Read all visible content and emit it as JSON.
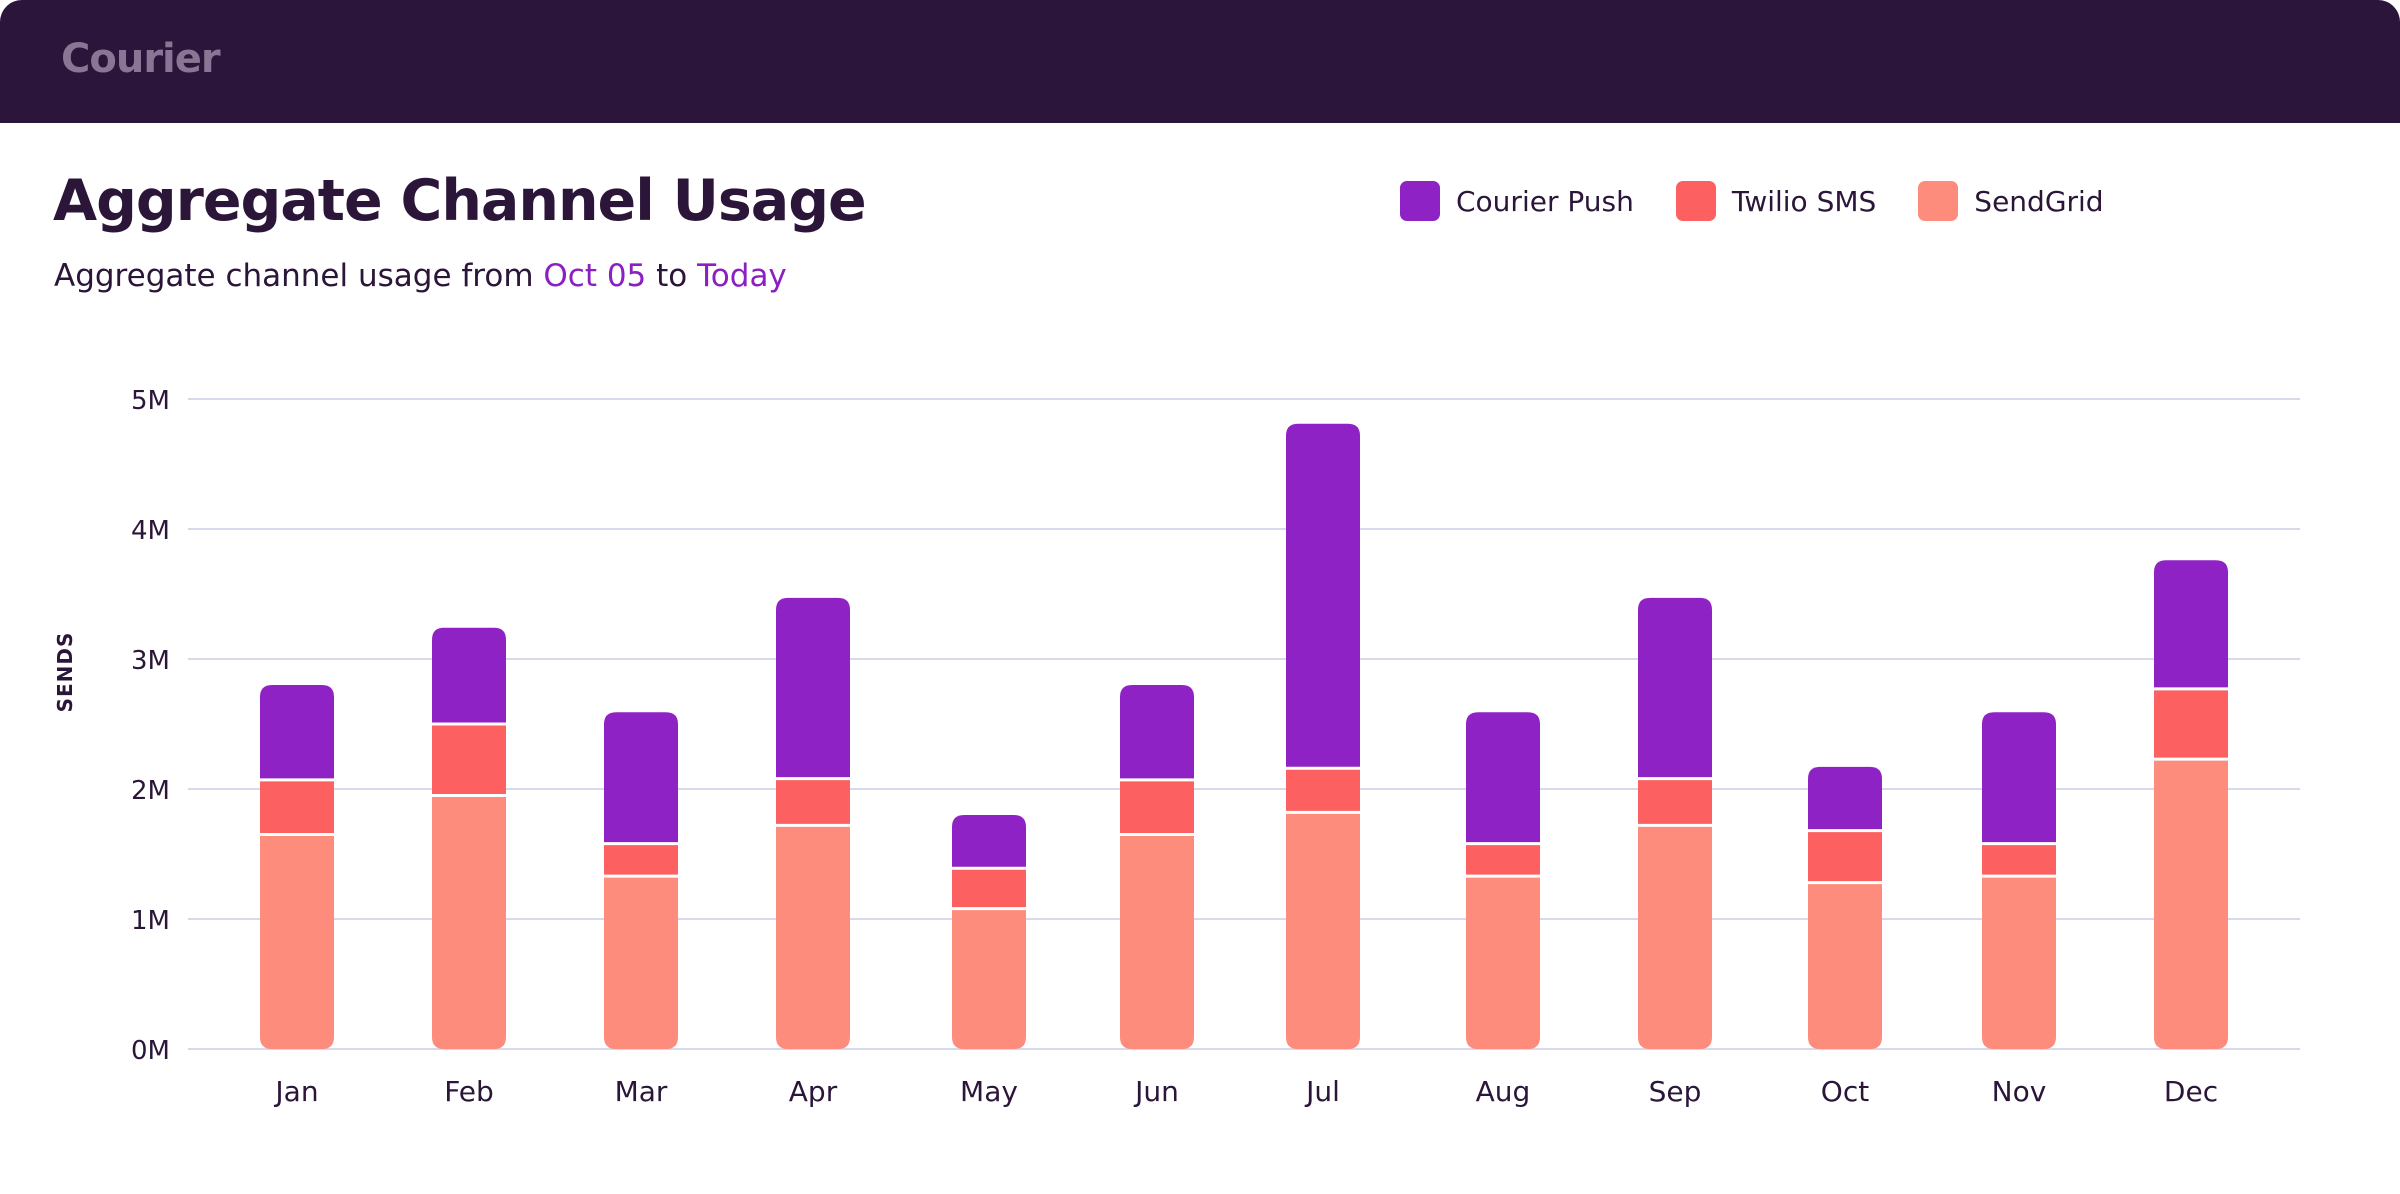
{
  "header": {
    "logo_text": "Courier"
  },
  "title": "Aggregate Channel Usage",
  "subtitle": {
    "prefix": "Aggregate channel usage from ",
    "start": "Oct 05",
    "middle": " to ",
    "end": "Today"
  },
  "colors": {
    "header_bg": "#2c153a",
    "accent": "#8b1fc2",
    "courier_push": "#8f22c4",
    "twilio_sms": "#fd6060",
    "sendgrid": "#fd8c7c",
    "gridline": "#c9cde6"
  },
  "chart_data": {
    "type": "bar",
    "stacked": true,
    "ylabel": "SENDS",
    "xlabel": "",
    "ylim": [
      0,
      5000000
    ],
    "ytick_labels": [
      "0M",
      "1M",
      "2M",
      "3M",
      "4M",
      "5M"
    ],
    "categories": [
      "Jan",
      "Feb",
      "Mar",
      "Apr",
      "May",
      "Jun",
      "Jul",
      "Aug",
      "Sep",
      "Oct",
      "Nov",
      "Dec"
    ],
    "legend_position": "top-right",
    "series": [
      {
        "name": "SendGrid",
        "color": "#fd8c7c",
        "values": [
          1650000,
          1950000,
          1330000,
          1720000,
          1080000,
          1650000,
          1820000,
          1330000,
          1720000,
          1280000,
          1330000,
          2230000
        ]
      },
      {
        "name": "Twilio SMS",
        "color": "#fd6060",
        "values": [
          420000,
          550000,
          250000,
          360000,
          310000,
          420000,
          340000,
          250000,
          360000,
          400000,
          250000,
          540000
        ]
      },
      {
        "name": "Courier Push",
        "color": "#8f22c4",
        "values": [
          730000,
          740000,
          1010000,
          1390000,
          410000,
          730000,
          2650000,
          1010000,
          1390000,
          490000,
          1010000,
          990000
        ]
      }
    ]
  }
}
